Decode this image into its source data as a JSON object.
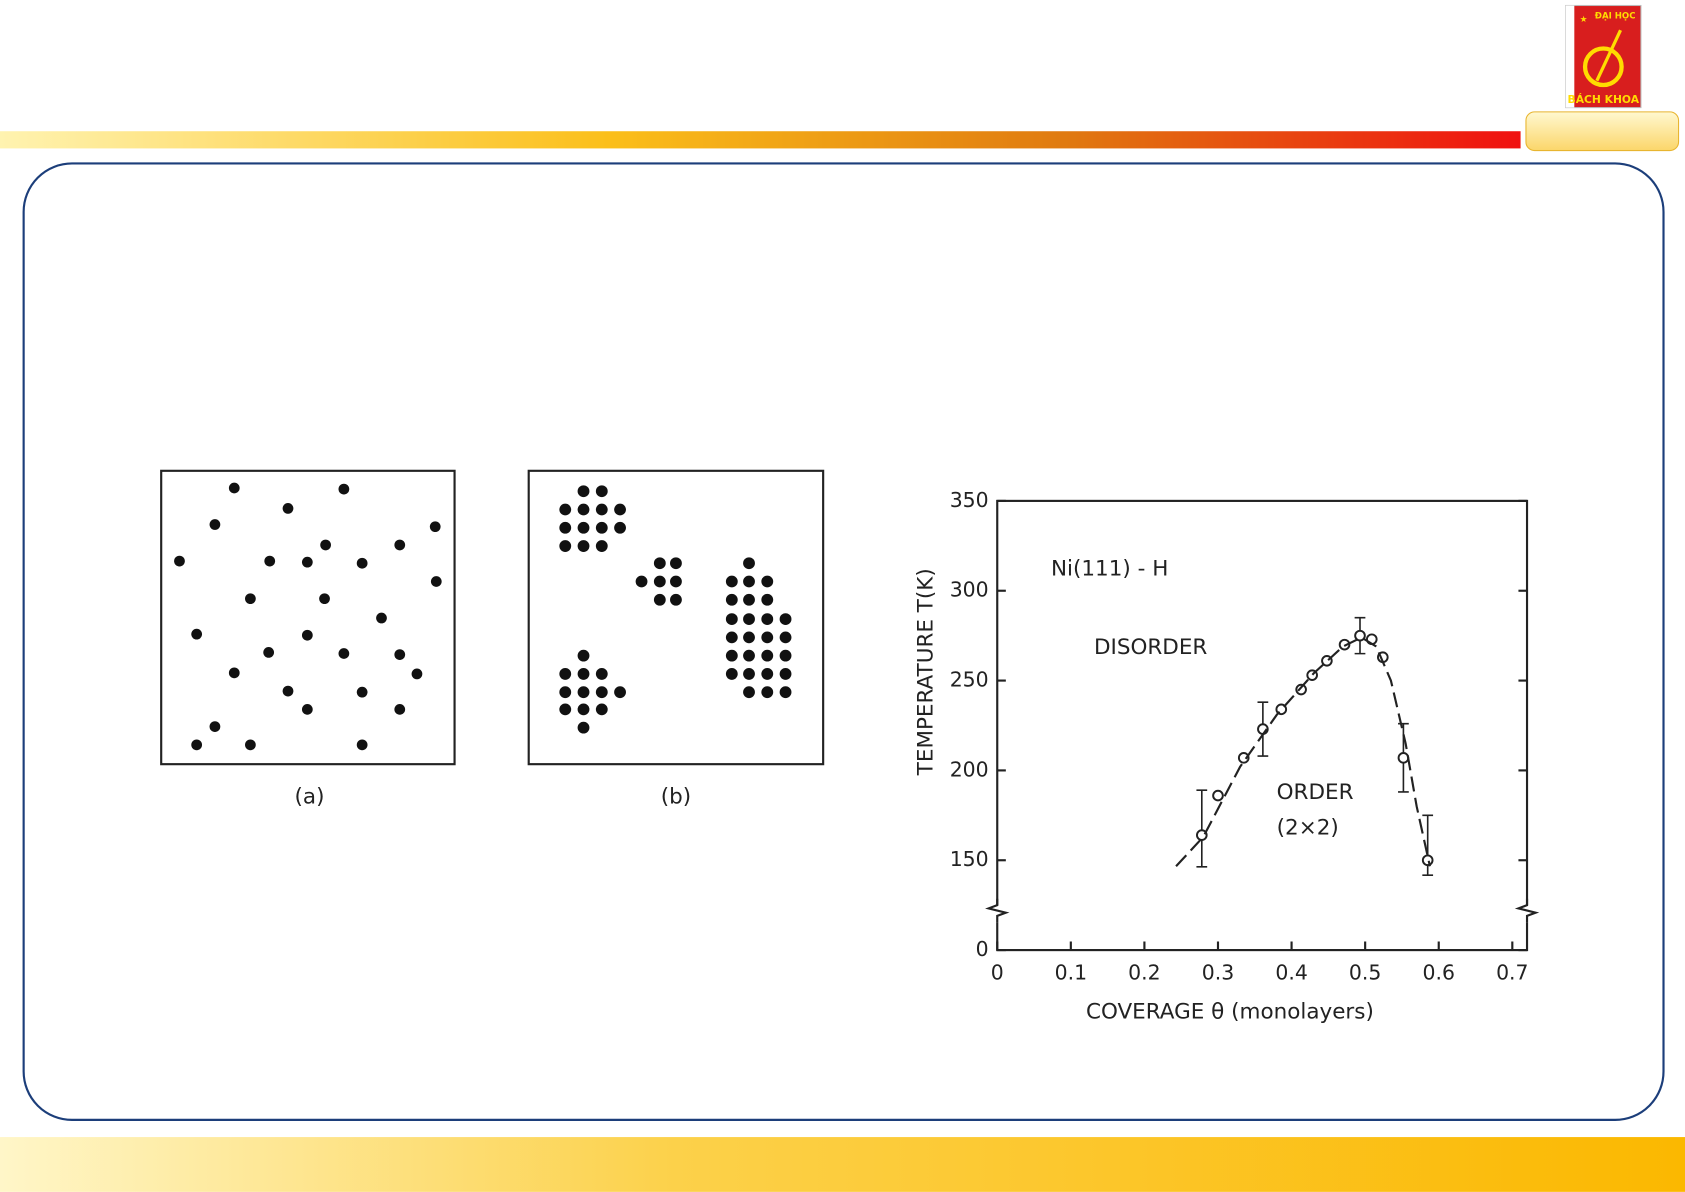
{
  "logo": {
    "top": "ĐẠI HỌC",
    "bottom": "BÁCH KHOA"
  },
  "figures": {
    "labels": [
      "(a)",
      "(b)"
    ]
  },
  "chart_data": {
    "type": "scatter",
    "xlabel": "COVERAGE θ (monolayers)",
    "ylabel": "TEMPERATURE T(K)",
    "annotations": [
      "Ni(111) - H",
      "DISORDER",
      "ORDER",
      "(2×2)"
    ],
    "xlim": [
      0,
      0.72
    ],
    "xticks": [
      0,
      0.1,
      0.2,
      0.3,
      0.4,
      0.5,
      0.6,
      0.7
    ],
    "ylim": [
      0,
      350
    ],
    "yticks": [
      0,
      150,
      200,
      250,
      300,
      350
    ],
    "ybreak": true,
    "series": [
      {
        "kind": "points",
        "color": "#222222",
        "x": [
          0.278,
          0.3,
          0.335,
          0.361,
          0.386,
          0.413,
          0.428,
          0.448,
          0.472,
          0.493,
          0.509,
          0.524,
          0.552,
          0.585
        ],
        "values": [
          164,
          186,
          207,
          223,
          234,
          245,
          253,
          261,
          270,
          275,
          273,
          263,
          207,
          150
        ],
        "errors": [
          25,
          null,
          null,
          15,
          null,
          null,
          null,
          null,
          null,
          10,
          null,
          null,
          19,
          25
        ]
      },
      {
        "kind": "line",
        "color": "#222222",
        "x": [
          0.243,
          0.28,
          0.33,
          0.38,
          0.43,
          0.47,
          0.495,
          0.515,
          0.535,
          0.555,
          0.57,
          0.588
        ],
        "values": [
          140,
          163,
          202,
          231,
          254,
          269,
          274,
          269,
          250,
          215,
          180,
          140
        ]
      }
    ]
  }
}
